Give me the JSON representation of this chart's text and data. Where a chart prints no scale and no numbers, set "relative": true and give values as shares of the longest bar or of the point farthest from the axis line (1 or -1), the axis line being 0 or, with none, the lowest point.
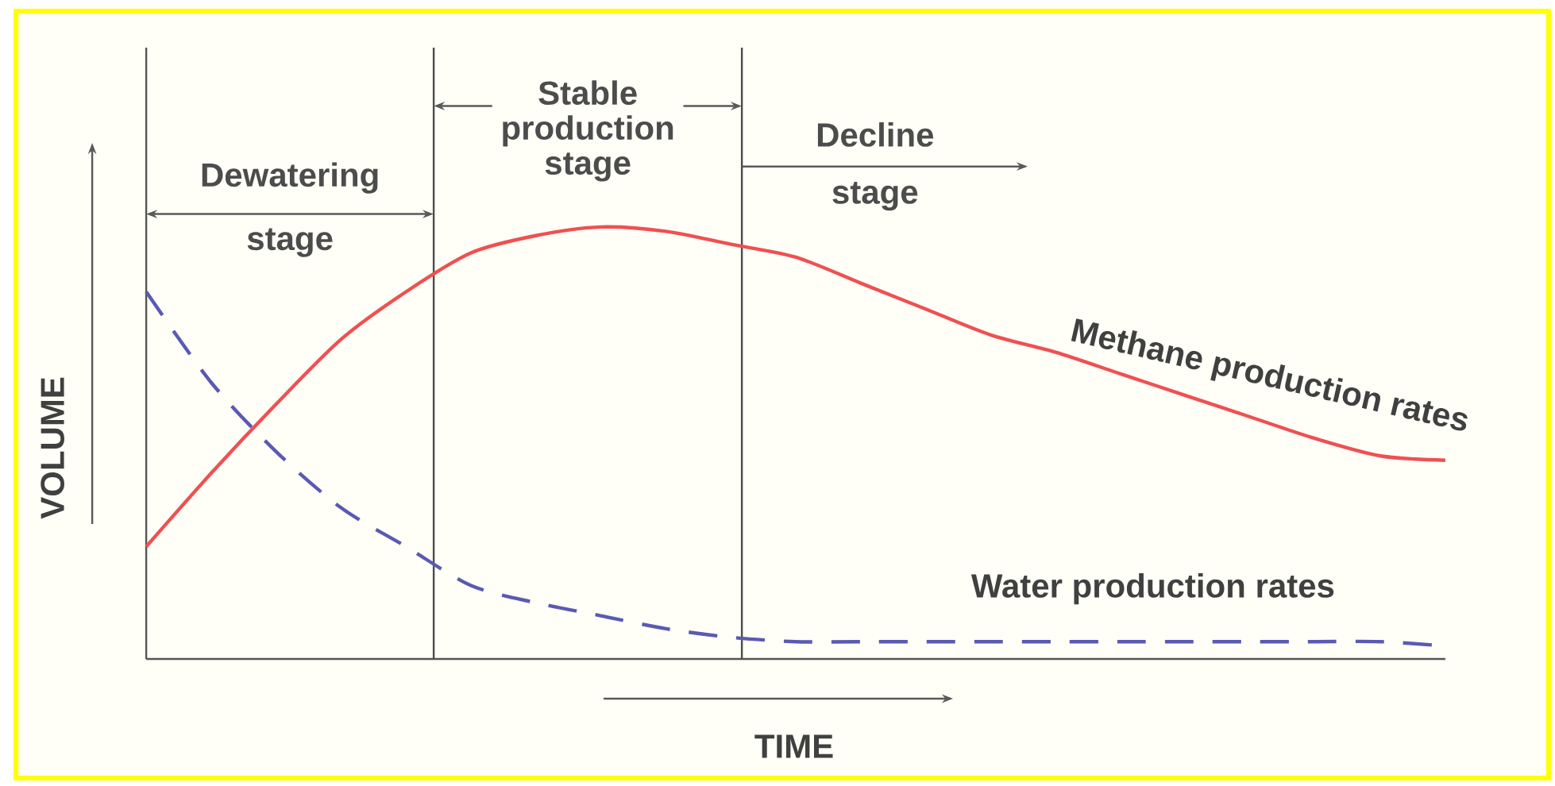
{
  "chart_data": {
    "type": "line",
    "relative": true,
    "xlabel": "TIME",
    "ylabel": "VOLUME",
    "categories": [
      null,
      null,
      null,
      null,
      null,
      null,
      null,
      null,
      null,
      null,
      null,
      null,
      null,
      null,
      null,
      null,
      null,
      null,
      null,
      null,
      null
    ],
    "series": [
      {
        "name": "Methane production rates",
        "color": "#f05050",
        "line_style": "solid",
        "values": [
          0.26,
          0.43,
          0.59,
          0.74,
          0.85,
          0.94,
          0.98,
          1.0,
          0.99,
          0.96,
          0.93,
          0.87,
          0.81,
          0.75,
          0.71,
          0.66,
          0.61,
          0.56,
          0.51,
          0.47,
          0.46
        ]
      },
      {
        "name": "Water production rates",
        "color": "#5a5ab4",
        "line_style": "dashed",
        "values": [
          0.85,
          0.64,
          0.48,
          0.35,
          0.26,
          0.17,
          0.13,
          0.1,
          0.07,
          0.05,
          0.04,
          0.04,
          0.04,
          0.04,
          0.04,
          0.04,
          0.04,
          0.04,
          0.04,
          0.04,
          0.03
        ]
      }
    ],
    "annotations": [
      "Dewatering stage",
      "Stable production stage",
      "Decline stage"
    ],
    "marker": "none"
  }
}
